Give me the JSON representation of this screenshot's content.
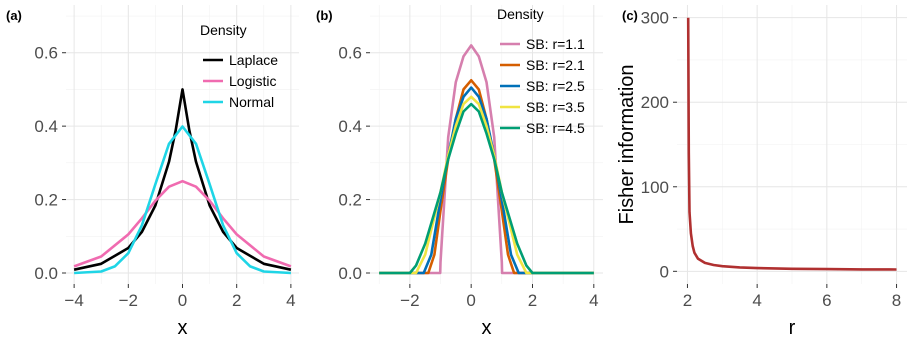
{
  "chart_data": [
    {
      "tag": "(a)",
      "type": "line",
      "xlabel": "x",
      "ylabel": "",
      "xlim": [
        -4.3,
        4.3
      ],
      "ylim": [
        -0.03,
        0.73
      ],
      "xticks": [
        -4,
        -2,
        0,
        2,
        4
      ],
      "yticks": [
        0.0,
        0.2,
        0.4,
        0.6
      ],
      "xtick_labels": [
        "−4",
        "−2",
        "0",
        "2",
        "4"
      ],
      "ytick_labels": [
        "0.0",
        "0.2",
        "0.4",
        "0.6"
      ],
      "grid": true,
      "legend_title": "Density",
      "legend_position": "top-right",
      "series": [
        {
          "name": "Laplace",
          "color": "#000000",
          "x": [
            -4,
            -3,
            -2,
            -1.5,
            -1,
            -0.5,
            -0.25,
            0,
            0.25,
            0.5,
            1,
            1.5,
            2,
            3,
            4
          ],
          "y": [
            0.009,
            0.025,
            0.068,
            0.112,
            0.184,
            0.303,
            0.389,
            0.5,
            0.389,
            0.303,
            0.184,
            0.112,
            0.068,
            0.025,
            0.009
          ]
        },
        {
          "name": "Logistic",
          "color": "#f06bb0",
          "x": [
            -4,
            -3,
            -2,
            -1.5,
            -1,
            -0.5,
            0,
            0.5,
            1,
            1.5,
            2,
            3,
            4
          ],
          "y": [
            0.018,
            0.045,
            0.105,
            0.149,
            0.197,
            0.235,
            0.25,
            0.235,
            0.197,
            0.149,
            0.105,
            0.045,
            0.018
          ]
        },
        {
          "name": "Normal",
          "color": "#1fd5e6",
          "x": [
            -4,
            -3,
            -2.5,
            -2,
            -1.5,
            -1,
            -0.5,
            0,
            0.5,
            1,
            1.5,
            2,
            2.5,
            3,
            4
          ],
          "y": [
            0.0001,
            0.004,
            0.018,
            0.054,
            0.13,
            0.242,
            0.352,
            0.399,
            0.352,
            0.242,
            0.13,
            0.054,
            0.018,
            0.004,
            0.0001
          ]
        }
      ]
    },
    {
      "tag": "(b)",
      "type": "line",
      "xlabel": "x",
      "ylabel": "",
      "xlim": [
        -3.3,
        4.3
      ],
      "ylim": [
        -0.03,
        0.73
      ],
      "xticks": [
        -2,
        0,
        2,
        4
      ],
      "yticks": [
        0.0,
        0.2,
        0.4,
        0.6
      ],
      "xtick_labels": [
        "−2",
        "0",
        "2",
        "4"
      ],
      "ytick_labels": [
        "0.0",
        "0.2",
        "0.4",
        "0.6"
      ],
      "grid": true,
      "legend_title": "Density",
      "legend_position": "top-right",
      "series": [
        {
          "name": "SB: r=1.1",
          "color": "#d67fae",
          "x": [
            -3,
            -1.01,
            -1.0,
            -0.75,
            -0.5,
            -0.25,
            0,
            0.25,
            0.5,
            0.75,
            1.0,
            1.01,
            4
          ],
          "y": [
            0,
            0,
            0.03,
            0.37,
            0.52,
            0.59,
            0.62,
            0.59,
            0.52,
            0.37,
            0.03,
            0,
            0
          ]
        },
        {
          "name": "SB: r=2.1",
          "color": "#d55e00",
          "x": [
            -3,
            -1.4,
            -1.2,
            -1.0,
            -0.75,
            -0.5,
            -0.25,
            0,
            0.25,
            0.5,
            0.75,
            1.0,
            1.2,
            1.4,
            4
          ],
          "y": [
            0,
            0,
            0.05,
            0.17,
            0.31,
            0.42,
            0.5,
            0.525,
            0.5,
            0.42,
            0.31,
            0.17,
            0.05,
            0,
            0
          ]
        },
        {
          "name": "SB: r=2.5",
          "color": "#0070b8",
          "x": [
            -3,
            -1.55,
            -1.3,
            -1.0,
            -0.75,
            -0.5,
            -0.25,
            0,
            0.25,
            0.5,
            0.75,
            1.0,
            1.3,
            1.55,
            4
          ],
          "y": [
            0,
            0,
            0.05,
            0.2,
            0.32,
            0.42,
            0.48,
            0.505,
            0.48,
            0.42,
            0.32,
            0.2,
            0.05,
            0,
            0
          ]
        },
        {
          "name": "SB: r=3.5",
          "color": "#f0e442",
          "x": [
            -3,
            -1.8,
            -1.5,
            -1.0,
            -0.75,
            -0.5,
            -0.25,
            0,
            0.25,
            0.5,
            0.75,
            1.0,
            1.5,
            1.8,
            4
          ],
          "y": [
            0,
            0,
            0.05,
            0.22,
            0.32,
            0.4,
            0.46,
            0.48,
            0.46,
            0.4,
            0.32,
            0.22,
            0.05,
            0,
            0
          ]
        },
        {
          "name": "SB: r=4.5",
          "color": "#009e73",
          "x": [
            -3,
            -2.0,
            -1.8,
            -1.5,
            -1.0,
            -0.75,
            -0.5,
            -0.25,
            0,
            0.25,
            0.5,
            0.75,
            1.0,
            1.5,
            1.8,
            2.0,
            4
          ],
          "y": [
            0,
            0,
            0.02,
            0.08,
            0.22,
            0.31,
            0.38,
            0.44,
            0.46,
            0.44,
            0.38,
            0.31,
            0.22,
            0.08,
            0.02,
            0,
            0
          ]
        }
      ]
    },
    {
      "tag": "(c)",
      "type": "line",
      "xlabel": "r",
      "ylabel": "Fisher information",
      "xlim": [
        1.7,
        8.3
      ],
      "ylim": [
        -15,
        315
      ],
      "xticks": [
        2,
        4,
        6,
        8
      ],
      "yticks": [
        0,
        100,
        200,
        300
      ],
      "xtick_labels": [
        "2",
        "4",
        "6",
        "8"
      ],
      "ytick_labels": [
        "0",
        "100",
        "200",
        "300"
      ],
      "grid": true,
      "series": [
        {
          "name": "",
          "color": "#b03030",
          "x": [
            2.02,
            2.04,
            2.06,
            2.1,
            2.15,
            2.2,
            2.3,
            2.5,
            2.75,
            3,
            3.5,
            4,
            5,
            6,
            7,
            8
          ],
          "y": [
            300,
            140,
            70,
            45,
            30,
            22,
            15,
            10,
            7.5,
            6,
            4.6,
            3.8,
            3.0,
            2.6,
            2.3,
            2.1
          ]
        }
      ]
    }
  ]
}
